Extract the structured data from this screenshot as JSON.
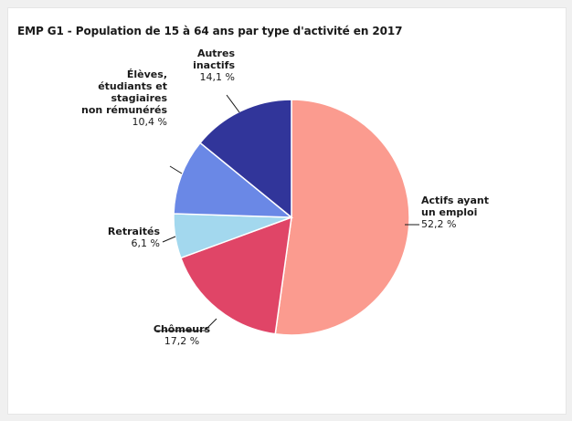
{
  "chart_data": {
    "type": "pie",
    "title": "EMP G1 - Population de 15 à 64 ans par type d'activité en 2017",
    "slices": [
      {
        "name": "Actifs ayant un emploi",
        "value": 52.2,
        "label": "52,2 %",
        "color": "#fb9b8f"
      },
      {
        "name": "Chômeurs",
        "value": 17.2,
        "label": "17,2 %",
        "color": "#e04567"
      },
      {
        "name": "Retraités",
        "value": 6.1,
        "label": "6,1 %",
        "color": "#a3d8ee"
      },
      {
        "name": "Élèves, étudiants et stagiaires non rémunérés",
        "value": 10.4,
        "label": "10,4 %",
        "color": "#6a88e6"
      },
      {
        "name": "Autres inactifs",
        "value": 14.1,
        "label": "14,1 %",
        "color": "#31359a"
      }
    ],
    "legend": "none",
    "label_style": "outside-leader-lines"
  }
}
